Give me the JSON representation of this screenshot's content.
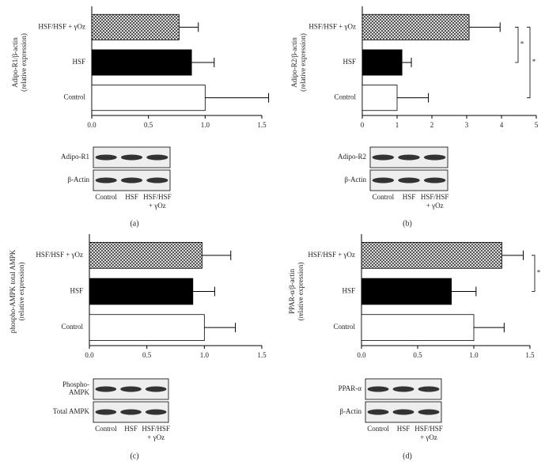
{
  "charts": [
    {
      "chart_data": {
        "type": "bar",
        "orientation": "horizontal",
        "y_label": [
          "Adipo-R1/β-actin",
          "(relative expression)"
        ],
        "categories": [
          "Control",
          "HSF",
          "HSF/HSF + γOz"
        ],
        "values": [
          1.0,
          0.88,
          0.77
        ],
        "errors": [
          0.56,
          0.2,
          0.17
        ],
        "colors": [
          "#ffffff",
          "#000000",
          "#555555"
        ],
        "xlim": [
          0,
          1.5
        ],
        "xticks": [
          {
            "value": 0,
            "label": "0.0"
          },
          0.5,
          {
            "value": 1,
            "label": "1.0"
          },
          1.5
        ],
        "brackets": [],
        "blot": {
          "rows": [
            [
              "Adipo-R1"
            ],
            [
              "β-Actin"
            ]
          ],
          "lanes": [
            [
              "Control"
            ],
            [
              "HSF"
            ],
            [
              "HSF/HSF",
              "+ γOz"
            ]
          ]
        },
        "panel_label": "(a)"
      }
    },
    {
      "chart_data": {
        "type": "bar",
        "orientation": "horizontal",
        "y_label": [
          "Adipo-R2/β-actin",
          "(relative expression)"
        ],
        "categories": [
          "Control",
          "HSF",
          "HSF/HSF + γOz"
        ],
        "values": [
          1.0,
          1.14,
          3.07
        ],
        "errors": [
          0.9,
          0.27,
          0.89
        ],
        "colors": [
          "#ffffff",
          "#000000",
          "#555555"
        ],
        "xlim": [
          0,
          5
        ],
        "xticks": [
          0,
          1,
          2,
          3,
          4,
          5
        ],
        "brackets": [
          {
            "between": [
              "HSF",
              "HSF/HSF + γOz"
            ],
            "label": "*"
          },
          {
            "between": [
              "Control",
              "HSF/HSF + γOz"
            ],
            "label": "*"
          }
        ],
        "blot": {
          "rows": [
            [
              "Adipo-R2"
            ],
            [
              "β-Actin"
            ]
          ],
          "lanes": [
            [
              "Control"
            ],
            [
              "HSF"
            ],
            [
              "HSF/HSF",
              "+ γOz"
            ]
          ]
        },
        "panel_label": "(b)"
      }
    },
    {
      "chart_data": {
        "type": "bar",
        "orientation": "horizontal",
        "y_label": [
          "phospho-AMPK total AMPK",
          "(relative expression)"
        ],
        "categories": [
          "Control",
          "HSF",
          "HSF/HSF + γOz"
        ],
        "values": [
          1.0,
          0.9,
          0.98
        ],
        "errors": [
          0.27,
          0.19,
          0.25
        ],
        "colors": [
          "#ffffff",
          "#000000",
          "#555555"
        ],
        "xlim": [
          0,
          1.5
        ],
        "xticks": [
          {
            "value": 0,
            "label": "0.0"
          },
          0.5,
          {
            "value": 1,
            "label": "1.0"
          },
          1.5
        ],
        "brackets": [],
        "blot": {
          "rows": [
            [
              "Phospho-",
              "AMPK"
            ],
            [
              "Total AMPK"
            ]
          ],
          "lanes": [
            [
              "Control"
            ],
            [
              "HSF"
            ],
            [
              "HSF/HSF",
              "+ γOz"
            ]
          ]
        },
        "panel_label": "(c)"
      }
    },
    {
      "chart_data": {
        "type": "bar",
        "orientation": "horizontal",
        "y_label": [
          "PPAR-α/β-actin",
          "(relative expression)"
        ],
        "categories": [
          "Control",
          "HSF",
          "HSF/HSF + γOz"
        ],
        "values": [
          1.0,
          0.8,
          1.25
        ],
        "errors": [
          0.27,
          0.22,
          0.19
        ],
        "colors": [
          "#ffffff",
          "#000000",
          "#555555"
        ],
        "xlim": [
          0,
          1.5
        ],
        "xticks": [
          {
            "value": 0,
            "label": "0.0"
          },
          0.5,
          {
            "value": 1,
            "label": "1.0"
          },
          1.5
        ],
        "brackets": [
          {
            "between": [
              "HSF",
              "HSF/HSF + γOz"
            ],
            "label": "*"
          }
        ],
        "blot": {
          "rows": [
            [
              "PPAR-α"
            ],
            [
              "β-Actin"
            ]
          ],
          "lanes": [
            [
              "Control"
            ],
            [
              "HSF"
            ],
            [
              "HSF/HSF",
              "+ γOz"
            ]
          ]
        },
        "panel_label": "(d)"
      }
    }
  ]
}
